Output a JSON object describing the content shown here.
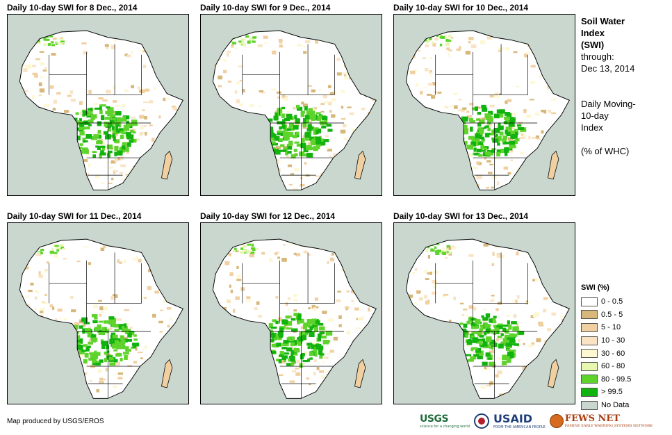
{
  "panels": [
    {
      "title": "Daily 10-day SWI for 8 Dec., 2014"
    },
    {
      "title": "Daily 10-day SWI for 9 Dec., 2014"
    },
    {
      "title": "Daily 10-day SWI for 10 Dec., 2014"
    },
    {
      "title": "Daily 10-day SWI for 11 Dec., 2014"
    },
    {
      "title": "Daily 10-day SWI for 12 Dec., 2014"
    },
    {
      "title": "Daily 10-day SWI for 13 Dec., 2014"
    }
  ],
  "side": {
    "title_line1": "Soil Water",
    "title_line2": "Index",
    "title_line3": "(SWI)",
    "through_label": "through:",
    "through_date": "Dec 13, 2014",
    "desc_line1": "Daily Moving-",
    "desc_line2": "10-day",
    "desc_line3": "Index",
    "units": "(% of WHC)"
  },
  "legend": {
    "title": "SWI (%)",
    "items": [
      {
        "label": "0 - 0.5",
        "color": "#ffffff"
      },
      {
        "label": "0.5 - 5",
        "color": "#d8b77a"
      },
      {
        "label": "5 - 10",
        "color": "#f0cfa0"
      },
      {
        "label": "10 - 30",
        "color": "#f9e3c2"
      },
      {
        "label": "30 - 60",
        "color": "#fdf7d2"
      },
      {
        "label": "60 - 80",
        "color": "#e8f7b0"
      },
      {
        "label": "80 - 99.5",
        "color": "#5ed32b"
      },
      {
        "label": "> 99.5",
        "color": "#13b30f"
      },
      {
        "label": "No Data",
        "color": "#c9d7cf"
      }
    ]
  },
  "credit": "Map produced by USGS/EROS",
  "logos": {
    "usgs": "USGS",
    "usgs_tag": "science for a changing world",
    "usaid": "USAID",
    "usaid_tag": "FROM THE AMERICAN PEOPLE",
    "fews": "FEWS NET",
    "fews_tag": "FAMINE EARLY WARNING SYSTEMS NETWORK"
  }
}
